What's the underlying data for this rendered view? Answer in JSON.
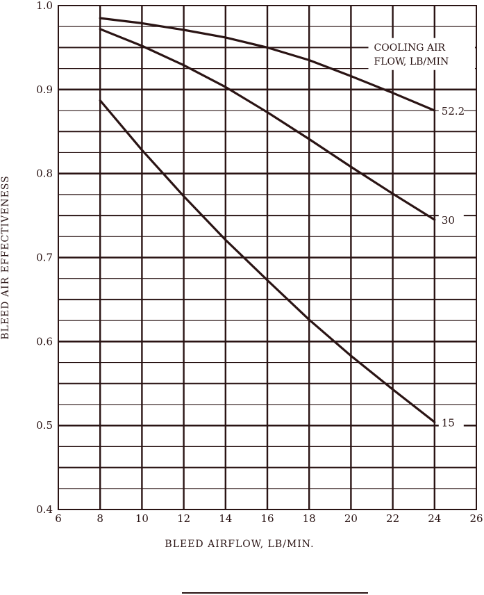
{
  "chart_data": {
    "type": "line",
    "title": "",
    "xlabel": "BLEED AIRFLOW, LB/MIN.",
    "ylabel": "BLEED AIR EFFECTIVENESS",
    "xlim": [
      6,
      26
    ],
    "ylim": [
      0.4,
      1.0
    ],
    "x_ticks": [
      "6",
      "8",
      "10",
      "12",
      "14",
      "16",
      "18",
      "20",
      "22",
      "24",
      "26"
    ],
    "y_ticks": [
      "0.4",
      "0.5",
      "0.6",
      "0.7",
      "0.8",
      "0.9",
      "1.0"
    ],
    "grid": true,
    "legend": {
      "title_lines": [
        "COOLING AIR",
        "FLOW, LB/MIN"
      ],
      "placement": "top-right"
    },
    "series": [
      {
        "name": "52.2",
        "x": [
          8,
          10,
          12,
          14,
          16,
          18,
          20,
          22,
          24
        ],
        "y": [
          0.985,
          0.979,
          0.971,
          0.962,
          0.95,
          0.935,
          0.916,
          0.896,
          0.875
        ]
      },
      {
        "name": "30",
        "x": [
          8,
          10,
          12,
          14,
          16,
          18,
          20,
          22,
          24
        ],
        "y": [
          0.972,
          0.952,
          0.929,
          0.903,
          0.873,
          0.841,
          0.808,
          0.776,
          0.745
        ]
      },
      {
        "name": "15",
        "x": [
          8,
          10,
          12,
          14,
          16,
          18,
          20,
          22,
          24
        ],
        "y": [
          0.887,
          0.828,
          0.773,
          0.721,
          0.673,
          0.626,
          0.583,
          0.543,
          0.504
        ]
      }
    ],
    "colors": {
      "ink": "#2a1414",
      "background": "#ffffff"
    }
  }
}
